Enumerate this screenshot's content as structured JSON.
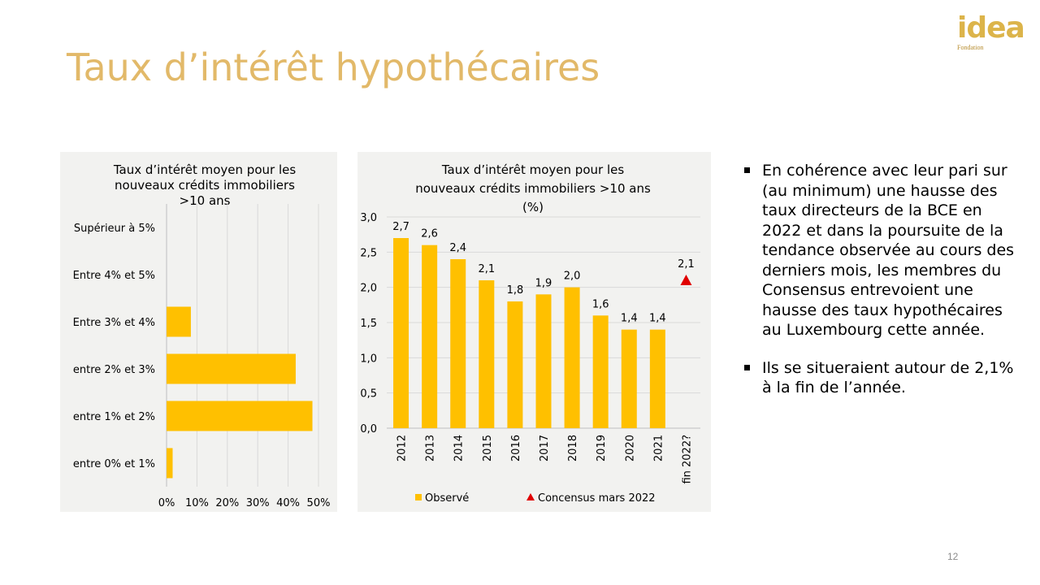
{
  "logo": {
    "name": "idea",
    "sub": "Fondation"
  },
  "slide": {
    "title": "Taux d’intérêt hypothécaires",
    "page_number": "12",
    "bullets": [
      "En cohérence avec leur pari sur (au minimum) une hausse des taux directeurs de la BCE en 2022 et dans la poursuite de la tendance observée au cours des derniers mois, les membres du Consensus entrevoient une hausse des taux hypothécaires au Luxembourg cette année.",
      "Ils se situeraient autour de 2,1% à la fin de l’année."
    ]
  },
  "colors": {
    "bar": "#ffc000",
    "marker": "#e00000",
    "title": "#e2b969",
    "panel": "#f2f2f0",
    "grid": "#d9d9d9"
  },
  "chart_data": [
    {
      "type": "bar",
      "orientation": "horizontal",
      "title": [
        "Taux d’intérêt moyen pour les",
        "nouveaux crédits immobiliers",
        ">10 ans"
      ],
      "categories": [
        "Supérieur à 5%",
        "Entre 4% et 5%",
        "Entre 3% et 4%",
        "entre 2% et 3%",
        "entre 1% et 2%",
        "entre 0% et 1%"
      ],
      "values": [
        0,
        0,
        8,
        42.5,
        48,
        2
      ],
      "xlim": [
        0,
        50
      ],
      "xticks": [
        0,
        10,
        20,
        30,
        40,
        50
      ],
      "xtick_labels": [
        "0%",
        "10%",
        "20%",
        "30%",
        "40%",
        "50%"
      ],
      "grid": true
    },
    {
      "type": "bar",
      "title": [
        "Taux d’intérêt moyen pour les",
        "nouveaux crédits immobiliers >10 ans",
        "(%)"
      ],
      "categories": [
        "2012",
        "2013",
        "2014",
        "2015",
        "2016",
        "2017",
        "2018",
        "2019",
        "2020",
        "2021",
        "fin 2022?"
      ],
      "series": [
        {
          "name": "Observé",
          "values": [
            2.7,
            2.6,
            2.4,
            2.1,
            1.8,
            1.9,
            2.0,
            1.6,
            1.4,
            1.4,
            null
          ],
          "labels": [
            "2,7",
            "2,6",
            "2,4",
            "2,1",
            "1,8",
            "1,9",
            "2,0",
            "1,6",
            "1,4",
            "1,4",
            ""
          ]
        },
        {
          "name": "Concensus mars 2022",
          "values": [
            null,
            null,
            null,
            null,
            null,
            null,
            null,
            null,
            null,
            null,
            2.1
          ],
          "labels": [
            "",
            "",
            "",
            "",
            "",
            "",
            "",
            "",
            "",
            "",
            "2,1"
          ]
        }
      ],
      "ylim": [
        0,
        3
      ],
      "yticks": [
        0,
        0.5,
        1,
        1.5,
        2,
        2.5,
        3
      ],
      "ytick_labels": [
        "0,0",
        "0,5",
        "1,0",
        "1,5",
        "2,0",
        "2,5",
        "3,0"
      ],
      "grid": true,
      "legend": "bottom"
    }
  ]
}
